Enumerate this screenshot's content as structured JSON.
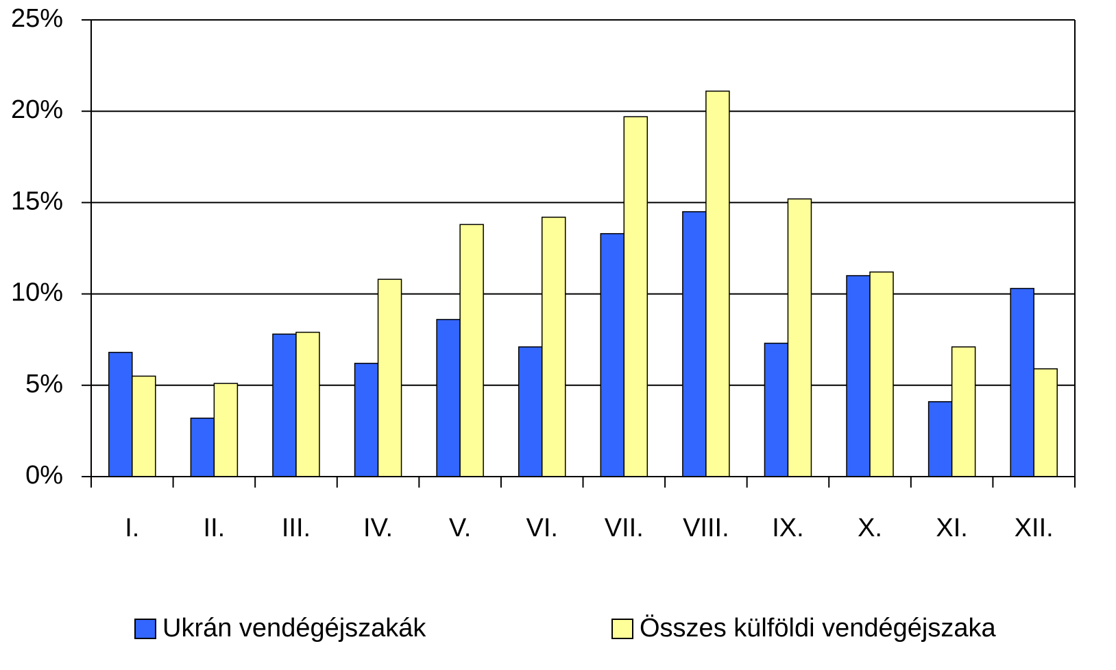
{
  "chart_data": {
    "type": "bar",
    "categories": [
      "I.",
      "II.",
      "III.",
      "IV.",
      "V.",
      "VI.",
      "VII.",
      "VIII.",
      "IX.",
      "X.",
      "XI.",
      "XII."
    ],
    "series": [
      {
        "name": "Ukrán vendégéjszakák",
        "color": "#3366ff",
        "values": [
          6.8,
          3.2,
          7.8,
          6.2,
          8.6,
          7.1,
          13.3,
          14.5,
          7.3,
          11.0,
          4.1,
          10.3
        ]
      },
      {
        "name": "Összes külföldi vendégéjszaka",
        "color": "#ffff99",
        "values": [
          5.5,
          5.1,
          7.9,
          10.8,
          13.8,
          14.2,
          19.7,
          21.1,
          15.2,
          11.2,
          7.1,
          5.9
        ]
      }
    ],
    "ylim": [
      0,
      25
    ],
    "yticks": [
      {
        "value": 0,
        "label": "0%"
      },
      {
        "value": 5,
        "label": "5%"
      },
      {
        "value": 10,
        "label": "10%"
      },
      {
        "value": 15,
        "label": "15%"
      },
      {
        "value": 20,
        "label": "20%"
      },
      {
        "value": 25,
        "label": "25%"
      }
    ],
    "grid": true,
    "legend": "bottom"
  }
}
